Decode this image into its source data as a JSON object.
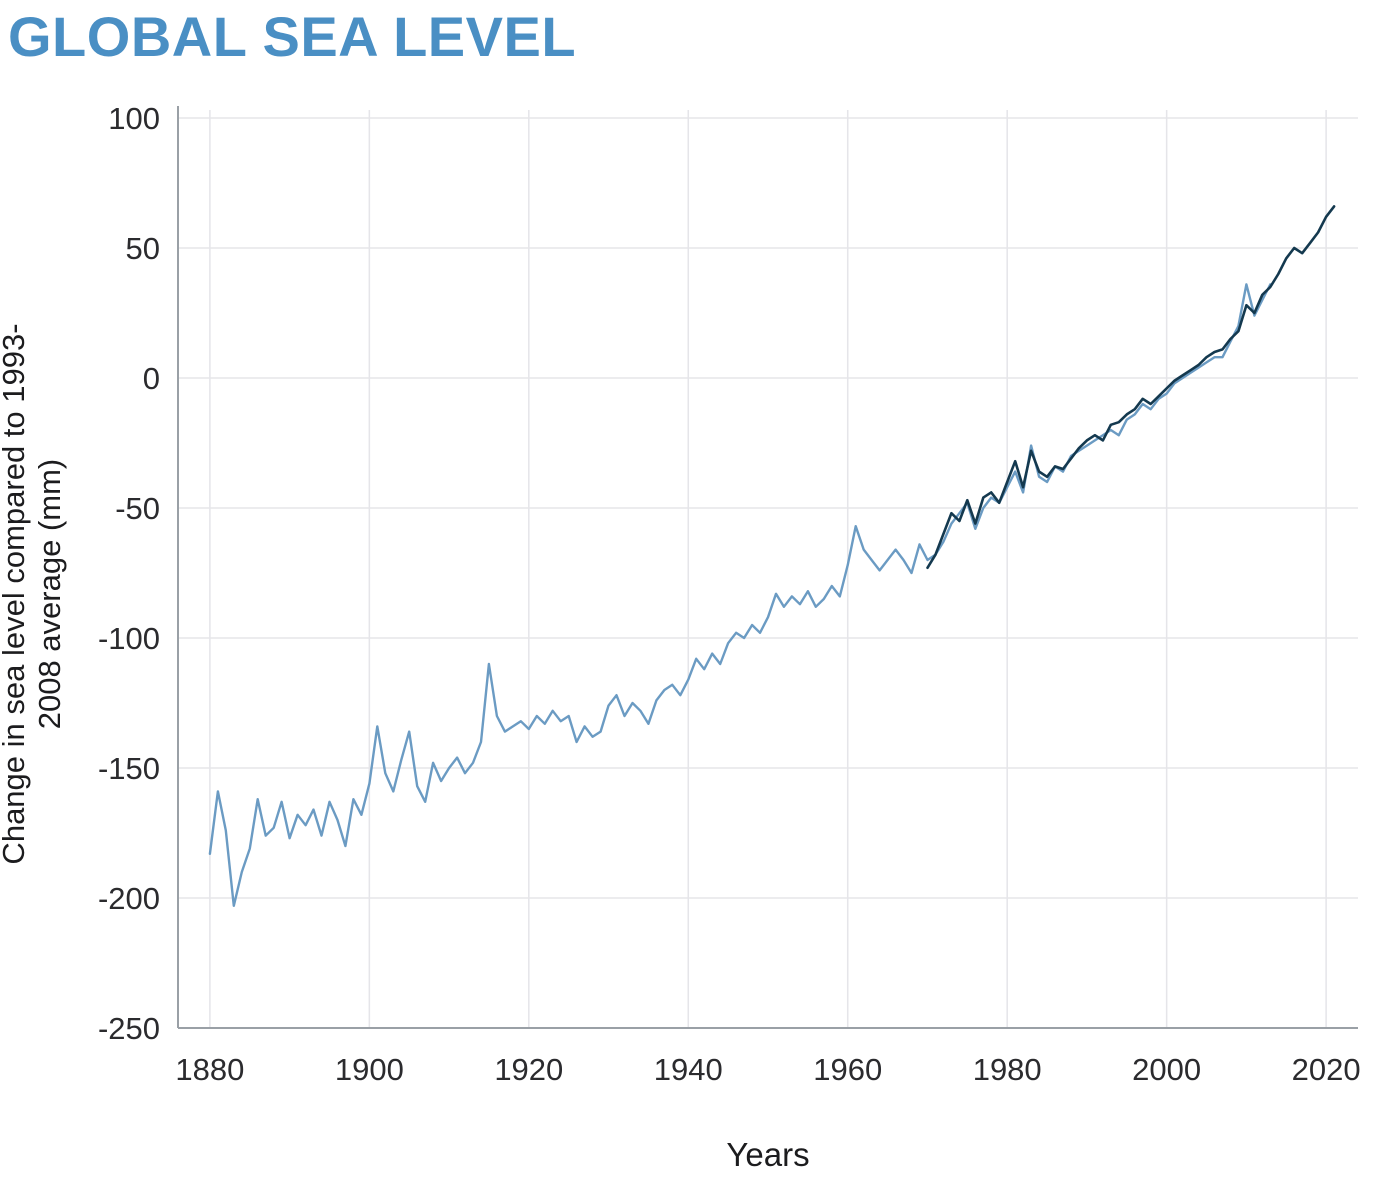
{
  "header": {
    "title": "GLOBAL SEA LEVEL",
    "title_color": "#4a8fc4"
  },
  "chart_data": {
    "type": "line",
    "title": "GLOBAL SEA LEVEL",
    "xlabel": "Years",
    "ylabel": "Change in sea level compared to 1993-2008 average (mm)",
    "xlim": [
      1876,
      2024
    ],
    "ylim": [
      -250,
      100
    ],
    "x_ticks": [
      1880,
      1900,
      1920,
      1940,
      1960,
      1980,
      2000,
      2020
    ],
    "y_ticks": [
      100,
      50,
      0,
      -50,
      -100,
      -150,
      -200,
      -250
    ],
    "grid": true,
    "legend": "none",
    "gridline_color": "#e5e5e9",
    "spine_color": "#9aa0a6",
    "series": [
      {
        "name": "light-blue-series",
        "color": "#6b9bc3",
        "width": 2.4,
        "start_year": 1880,
        "values": [
          -183,
          -159,
          -174,
          -203,
          -190,
          -181,
          -162,
          -176,
          -173,
          -163,
          -177,
          -168,
          -172,
          -166,
          -176,
          -163,
          -170,
          -180,
          -162,
          -168,
          -156,
          -134,
          -152,
          -159,
          -147,
          -136,
          -157,
          -163,
          -148,
          -155,
          -150,
          -146,
          -152,
          -148,
          -140,
          -110,
          -130,
          -136,
          -134,
          -132,
          -135,
          -130,
          -133,
          -128,
          -132,
          -130,
          -140,
          -134,
          -138,
          -136,
          -126,
          -122,
          -130,
          -125,
          -128,
          -133,
          -124,
          -120,
          -118,
          -122,
          -116,
          -108,
          -112,
          -106,
          -110,
          -102,
          -98,
          -100,
          -95,
          -98,
          -92,
          -83,
          -88,
          -84,
          -87,
          -82,
          -88,
          -85,
          -80,
          -84,
          -72,
          -57,
          -66,
          -70,
          -74,
          -70,
          -66,
          -70,
          -75,
          -64,
          -70,
          -68,
          -63,
          -56,
          -52,
          -48,
          -58,
          -50,
          -46,
          -48,
          -42,
          -36,
          -44,
          -26,
          -38,
          -40,
          -34,
          -36,
          -30,
          -28,
          -26,
          -24,
          -22,
          -20,
          -22,
          -16,
          -14,
          -10,
          -12,
          -8,
          -6,
          -2,
          0,
          2,
          4,
          6,
          8,
          8,
          14,
          20,
          36,
          24,
          30,
          36
        ]
      },
      {
        "name": "dark-blue-series",
        "color": "#14394f",
        "width": 2.6,
        "start_year": 1970,
        "values": [
          -73,
          -68,
          -60,
          -52,
          -55,
          -47,
          -56,
          -46,
          -44,
          -48,
          -40,
          -32,
          -42,
          -28,
          -36,
          -38,
          -34,
          -35,
          -31,
          -27,
          -24,
          -22,
          -24,
          -18,
          -17,
          -14,
          -12,
          -8,
          -10,
          -7,
          -4,
          -1,
          1,
          3,
          5,
          8,
          10,
          11,
          15,
          18,
          28,
          25,
          32,
          35,
          40,
          46,
          50,
          48,
          52,
          56,
          62,
          66
        ]
      }
    ]
  }
}
